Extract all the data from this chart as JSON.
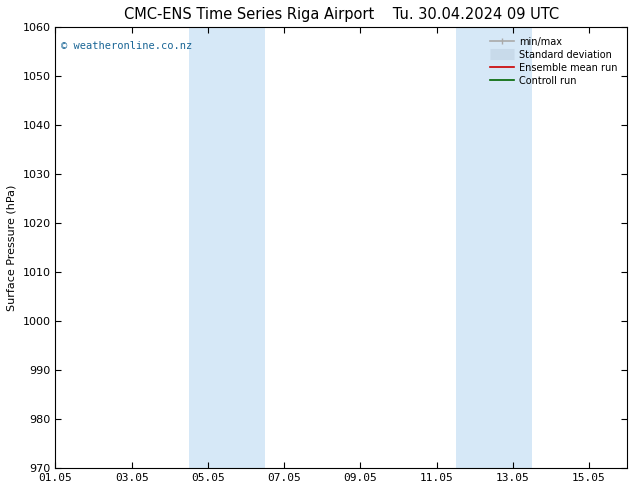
{
  "title": "CMC-ENS Time Series Riga Airport",
  "title2": "Tu. 30.04.2024 09 UTC",
  "ylabel": "Surface Pressure (hPa)",
  "ylim": [
    970,
    1060
  ],
  "yticks": [
    970,
    980,
    990,
    1000,
    1010,
    1020,
    1030,
    1040,
    1050,
    1060
  ],
  "xtick_labels": [
    "01.05",
    "03.05",
    "05.05",
    "07.05",
    "09.05",
    "11.05",
    "13.05",
    "15.05"
  ],
  "xtick_positions": [
    0,
    2,
    4,
    6,
    8,
    10,
    12,
    14
  ],
  "xlim": [
    0,
    15
  ],
  "shade_bands": [
    {
      "start": 3.5,
      "end": 5.5
    },
    {
      "start": 10.5,
      "end": 12.5
    }
  ],
  "shade_color": "#d6e8f7",
  "watermark": "© weatheronline.co.nz",
  "watermark_color": "#1a6696",
  "legend_entries": [
    {
      "label": "min/max",
      "color": "#aaaaaa",
      "lw": 1.2,
      "type": "line_with_caps"
    },
    {
      "label": "Standard deviation",
      "color": "#c8daea",
      "lw": 8,
      "type": "thick_line"
    },
    {
      "label": "Ensemble mean run",
      "color": "#cc0000",
      "lw": 1.2,
      "type": "line"
    },
    {
      "label": "Controll run",
      "color": "#006600",
      "lw": 1.2,
      "type": "line"
    }
  ],
  "bg_color": "#ffffff",
  "font_size": 8,
  "title_font_size": 10.5,
  "ylabel_font_size": 8
}
